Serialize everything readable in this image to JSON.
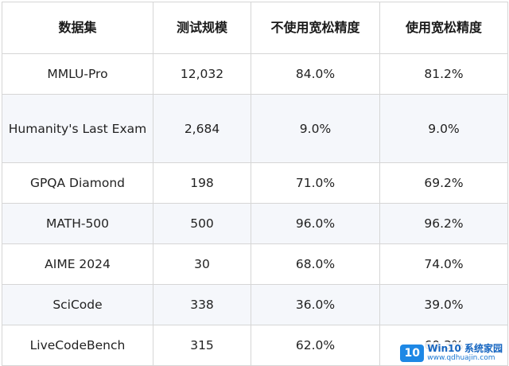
{
  "table": {
    "headers": [
      "数据集",
      "测试规模",
      "不使用宽松精度",
      "使用宽松精度"
    ],
    "rows": [
      {
        "dataset": "MMLU-Pro",
        "size": "12,032",
        "strict": "84.0%",
        "relaxed": "81.2%"
      },
      {
        "dataset": "Humanity's Last Exam",
        "size": "2,684",
        "strict": "9.0%",
        "relaxed": "9.0%"
      },
      {
        "dataset": "GPQA Diamond",
        "size": "198",
        "strict": "71.0%",
        "relaxed": "69.2%"
      },
      {
        "dataset": "MATH-500",
        "size": "500",
        "strict": "96.0%",
        "relaxed": "96.2%"
      },
      {
        "dataset": "AIME 2024",
        "size": "30",
        "strict": "68.0%",
        "relaxed": "74.0%"
      },
      {
        "dataset": "SciCode",
        "size": "338",
        "strict": "36.0%",
        "relaxed": "39.0%"
      },
      {
        "dataset": "LiveCodeBench",
        "size": "315",
        "strict": "62.0%",
        "relaxed": "60.3%"
      }
    ]
  },
  "watermark": {
    "logo": "10",
    "brand": "Win10 系统家园",
    "url": "www.qdhuajin.com"
  },
  "colors": {
    "border": "#d6d6d6",
    "stripe": "#f5f7fb",
    "watermark_blue": "#1e88e5"
  }
}
